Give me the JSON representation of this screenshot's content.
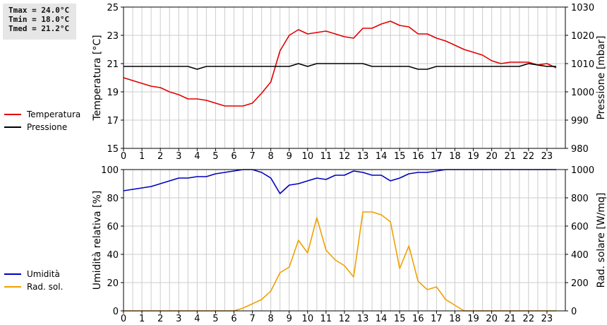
{
  "stats": {
    "tmax": "Tmax = 24.0°C",
    "tmin": "Tmin = 18.0°C",
    "tmed": "Tmed = 21.2°C"
  },
  "chart_data": [
    {
      "type": "line",
      "ylabel": "Temperatura [°C]",
      "y2label": "Pressione [mbar]",
      "ylim": [
        15,
        25
      ],
      "y2lim": [
        980,
        1030
      ],
      "xlim": [
        0,
        24
      ],
      "grid": true,
      "legend_placement": "left",
      "xticks": [
        "0",
        "1",
        "2",
        "3",
        "4",
        "5",
        "6",
        "7",
        "8",
        "9",
        "10",
        "11",
        "12",
        "13",
        "14",
        "15",
        "16",
        "17",
        "18",
        "19",
        "20",
        "21",
        "22",
        "23"
      ],
      "yticks": [
        "15",
        "17",
        "19",
        "21",
        "23",
        "25"
      ],
      "y2ticks": [
        "980",
        "990",
        "1000",
        "1010",
        "1020",
        "1030"
      ],
      "series": [
        {
          "name": "Temperatura",
          "color": "#e00000",
          "axis": "left",
          "x": [
            0,
            0.5,
            1,
            1.5,
            2,
            2.5,
            3,
            3.5,
            4,
            4.5,
            5,
            5.5,
            6,
            6.5,
            7,
            7.5,
            8,
            8.5,
            9,
            9.5,
            10,
            10.5,
            11,
            11.5,
            12,
            12.5,
            13,
            13.5,
            14,
            14.5,
            15,
            15.5,
            16,
            16.5,
            17,
            17.5,
            18,
            18.5,
            19,
            19.5,
            20,
            20.5,
            21,
            21.5,
            22,
            22.5,
            23,
            23.5
          ],
          "y": [
            20.0,
            19.8,
            19.6,
            19.4,
            19.3,
            19.0,
            18.8,
            18.5,
            18.5,
            18.4,
            18.2,
            18.0,
            18.0,
            18.0,
            18.2,
            18.9,
            19.7,
            21.9,
            23.0,
            23.4,
            23.1,
            23.2,
            23.3,
            23.1,
            22.9,
            22.8,
            23.5,
            23.5,
            23.8,
            24.0,
            23.7,
            23.6,
            23.1,
            23.1,
            22.8,
            22.6,
            22.3,
            22.0,
            21.8,
            21.6,
            21.2,
            21.0,
            21.1,
            21.1,
            21.1,
            20.9,
            21.0,
            20.7
          ]
        },
        {
          "name": "Pressione",
          "color": "#000000",
          "axis": "right",
          "x": [
            0,
            0.5,
            1,
            1.5,
            2,
            2.5,
            3,
            3.5,
            4,
            4.5,
            5,
            5.5,
            6,
            6.5,
            7,
            7.5,
            8,
            8.5,
            9,
            9.5,
            10,
            10.5,
            11,
            11.5,
            12,
            12.5,
            13,
            13.5,
            14,
            14.5,
            15,
            15.5,
            16,
            16.5,
            17,
            17.5,
            18,
            18.5,
            19,
            19.5,
            20,
            20.5,
            21,
            21.5,
            22,
            22.5,
            23,
            23.5
          ],
          "y": [
            1009,
            1009,
            1009,
            1009,
            1009,
            1009,
            1009,
            1009,
            1008,
            1009,
            1009,
            1009,
            1009,
            1009,
            1009,
            1009,
            1009,
            1009,
            1009,
            1010,
            1009,
            1010,
            1010,
            1010,
            1010,
            1010,
            1010,
            1009,
            1009,
            1009,
            1009,
            1009,
            1008,
            1008,
            1009,
            1009,
            1009,
            1009,
            1009,
            1009,
            1009,
            1009,
            1009,
            1009,
            1010,
            1009.5,
            1009,
            1009
          ]
        }
      ]
    },
    {
      "type": "line",
      "ylabel": "Umidità relativa [%]",
      "y2label": "Rad. solare [W/mq]",
      "ylim": [
        0,
        100
      ],
      "y2lim": [
        0,
        1000
      ],
      "xlim": [
        0,
        24
      ],
      "grid": true,
      "legend_placement": "left",
      "xticks": [
        "0",
        "1",
        "2",
        "3",
        "4",
        "5",
        "6",
        "7",
        "8",
        "9",
        "10",
        "11",
        "12",
        "13",
        "14",
        "15",
        "16",
        "17",
        "18",
        "19",
        "20",
        "21",
        "22",
        "23"
      ],
      "yticks": [
        "0",
        "20",
        "40",
        "60",
        "80",
        "100"
      ],
      "y2ticks": [
        "0",
        "200",
        "400",
        "600",
        "800",
        "1000"
      ],
      "series": [
        {
          "name": "Umidità",
          "color": "#0000c0",
          "axis": "left",
          "x": [
            0,
            0.5,
            1,
            1.5,
            2,
            2.5,
            3,
            3.5,
            4,
            4.5,
            5,
            5.5,
            6,
            6.5,
            7,
            7.5,
            8,
            8.5,
            9,
            9.5,
            10,
            10.5,
            11,
            11.5,
            12,
            12.5,
            13,
            13.5,
            14,
            14.5,
            15,
            15.5,
            16,
            16.5,
            17,
            17.5,
            18,
            18.5,
            19,
            19.5,
            20,
            20.5,
            21,
            21.5,
            22,
            22.5,
            23,
            23.5
          ],
          "y": [
            85,
            86,
            87,
            88,
            90,
            92,
            94,
            94,
            95,
            95,
            97,
            98,
            99,
            100,
            100,
            98,
            94,
            83,
            89,
            90,
            92,
            94,
            93,
            96,
            96,
            99,
            98,
            96,
            96,
            92,
            94,
            97,
            98,
            98,
            99,
            100,
            100,
            100,
            100,
            100,
            100,
            100,
            100,
            100,
            100,
            100,
            100,
            100
          ]
        },
        {
          "name": "Rad. sol.",
          "color": "#f0a000",
          "axis": "right",
          "x": [
            0,
            0.5,
            1,
            1.5,
            2,
            2.5,
            3,
            3.5,
            4,
            4.5,
            5,
            5.5,
            6,
            6.5,
            7,
            7.5,
            8,
            8.5,
            9,
            9.5,
            10,
            10.5,
            11,
            11.5,
            12,
            12.5,
            13,
            13.5,
            14,
            14.5,
            15,
            15.5,
            16,
            16.5,
            17,
            17.5,
            18,
            18.5,
            19,
            19.5,
            20,
            20.5,
            21,
            21.5,
            22,
            22.5,
            23,
            23.5
          ],
          "y": [
            0,
            0,
            0,
            0,
            0,
            0,
            0,
            0,
            0,
            0,
            0,
            0,
            0,
            20,
            50,
            80,
            140,
            270,
            310,
            500,
            410,
            660,
            430,
            360,
            320,
            240,
            700,
            700,
            680,
            630,
            300,
            460,
            210,
            150,
            170,
            80,
            40,
            0,
            0,
            0,
            0,
            0,
            0,
            0,
            0,
            0,
            0,
            0
          ]
        }
      ]
    }
  ]
}
